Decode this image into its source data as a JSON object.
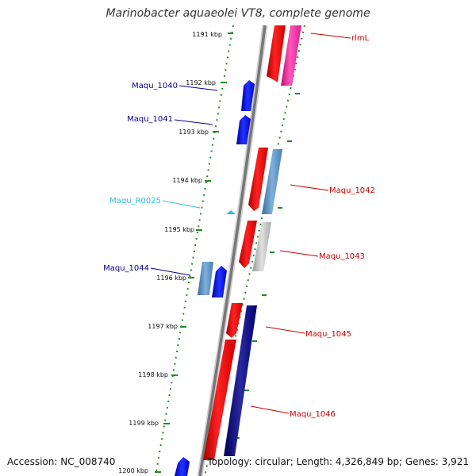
{
  "title": "Marinobacter aquaeolei VT8, complete genome",
  "footer": {
    "accession": "Accession: NC_008740",
    "summary": "Topology: circular; Length: 4,326,849 bp; Genes: 3,921"
  },
  "colors": {
    "backbone": "#888888",
    "tick": "#228B22",
    "forward_label": "#00008B",
    "reverse_label": "#CC0000",
    "rna_label": "#33BBDD"
  },
  "ticks": [
    "1191 kbp",
    "1192 kbp",
    "1193 kbp",
    "1194 kbp",
    "1195 kbp",
    "1196 kbp",
    "1197 kbp",
    "1198 kbp",
    "1199 kbp",
    "1200 kbp"
  ],
  "genes": [
    {
      "name": "rlmL",
      "strand": "reverse",
      "icon": "red-and-magenta-gene-block"
    },
    {
      "name": "Maqu_1040",
      "strand": "forward",
      "icon": "blue-arrow"
    },
    {
      "name": "Maqu_1041",
      "strand": "forward",
      "icon": "blue-arrow"
    },
    {
      "name": "Maqu_1042",
      "strand": "reverse",
      "icon": "red-and-steelblue-gene-block"
    },
    {
      "name": "Maqu_R0025",
      "strand": "forward",
      "icon": "cyan-rna-marker"
    },
    {
      "name": "Maqu_1043",
      "strand": "reverse",
      "icon": "red-and-grey-gene-block"
    },
    {
      "name": "Maqu_1044",
      "strand": "forward",
      "icon": "blue-arrow"
    },
    {
      "name": "Maqu_1045",
      "strand": "reverse",
      "icon": "red-and-navy-gene-block"
    },
    {
      "name": "Maqu_1046",
      "strand": "reverse",
      "icon": "red-and-navy-gene-block"
    }
  ]
}
